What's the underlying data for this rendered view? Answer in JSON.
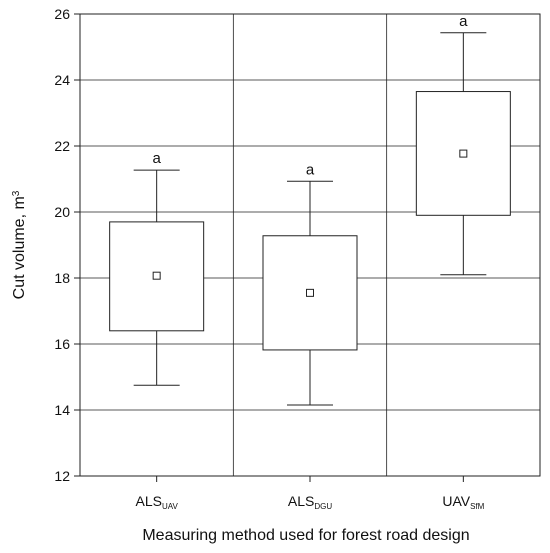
{
  "chart_data": {
    "type": "box",
    "xlabel": "Measuring method used for forest road design",
    "ylabel": "Cut volume, m",
    "ylabel_sup": "3",
    "ylim": [
      12,
      26
    ],
    "yticks": [
      12,
      14,
      16,
      18,
      20,
      22,
      24,
      26
    ],
    "ytick_labels": [
      "12",
      "14",
      "16",
      "18",
      "20",
      "22",
      "24",
      "26"
    ],
    "grid": true,
    "categories": [
      {
        "main": "ALS",
        "sub": "UAV"
      },
      {
        "main": "ALS",
        "sub": "DGU"
      },
      {
        "main": "UAV",
        "sub": "SfM"
      }
    ],
    "boxes": [
      {
        "whisker_low": 14.75,
        "box_low": 16.4,
        "mean": 18.07,
        "box_high": 19.7,
        "whisker_high": 21.27,
        "group_label": "a"
      },
      {
        "whisker_low": 14.15,
        "box_low": 15.82,
        "mean": 17.55,
        "box_high": 19.28,
        "whisker_high": 20.93,
        "group_label": "a"
      },
      {
        "whisker_low": 18.1,
        "box_low": 19.9,
        "mean": 21.77,
        "box_high": 23.65,
        "whisker_high": 25.43,
        "group_label": "a"
      }
    ]
  }
}
